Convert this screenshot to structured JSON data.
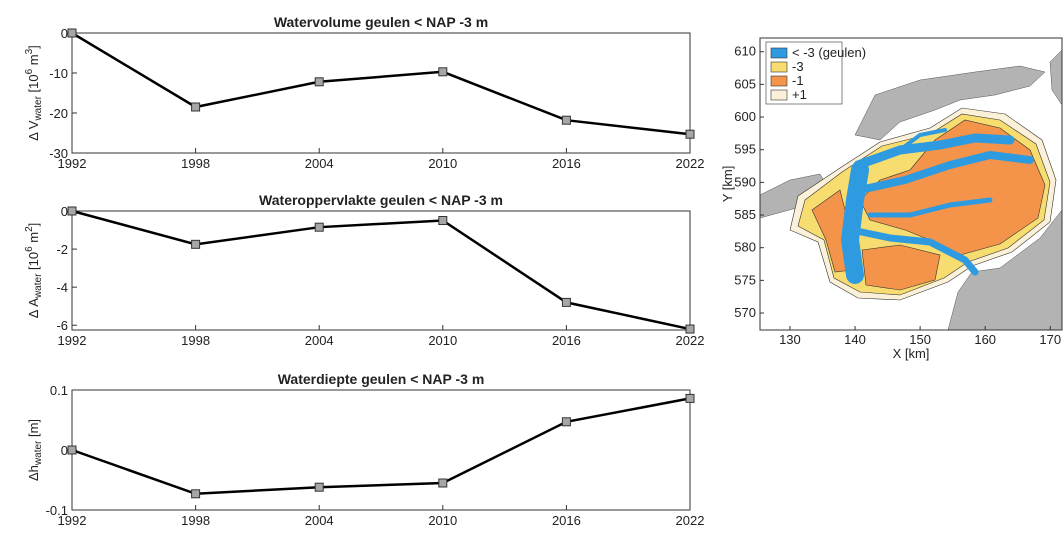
{
  "chart_data": [
    {
      "type": "line",
      "title": "Watervolume geulen < NAP -3 m",
      "ylabel": [
        "Δ V",
        "water",
        " [10",
        "6",
        " m",
        "3",
        "]"
      ],
      "x": [
        1992,
        1998,
        2004,
        2010,
        2016,
        2022
      ],
      "values": [
        0,
        -18.5,
        -12.2,
        -9.7,
        -21.8,
        -25.3
      ],
      "xlim": [
        1992,
        2022
      ],
      "xticks": [
        1992,
        1998,
        2004,
        2010,
        2016,
        2022
      ],
      "ylim": [
        -30,
        0
      ],
      "yticks": [
        -30,
        -20,
        -10,
        0
      ],
      "color": "#000000",
      "marker_color": "#a6a6a6"
    },
    {
      "type": "line",
      "title": "Wateroppervlakte geulen < NAP -3 m",
      "ylabel": [
        "Δ A",
        "water",
        " [10",
        "6",
        " m",
        "2",
        "]"
      ],
      "x": [
        1992,
        1998,
        2004,
        2010,
        2016,
        2022
      ],
      "values": [
        0,
        -1.75,
        -0.85,
        -0.5,
        -4.8,
        -6.2
      ],
      "xlim": [
        1992,
        2022
      ],
      "xticks": [
        1992,
        1998,
        2004,
        2010,
        2016,
        2022
      ],
      "ylim": [
        -6.25,
        0
      ],
      "yticks": [
        -6,
        -4,
        -2,
        0
      ],
      "color": "#000000",
      "marker_color": "#a6a6a6"
    },
    {
      "type": "line",
      "title": "Waterdiepte geulen < NAP -3 m",
      "ylabel": [
        "Δh",
        "water",
        " [m]"
      ],
      "x": [
        1992,
        1998,
        2004,
        2010,
        2016,
        2022
      ],
      "values": [
        0,
        -0.073,
        -0.062,
        -0.055,
        0.047,
        0.086
      ],
      "xlim": [
        1992,
        2022
      ],
      "xticks": [
        1992,
        1998,
        2004,
        2010,
        2016,
        2022
      ],
      "ylim": [
        -0.1,
        0.1
      ],
      "yticks": [
        -0.1,
        0,
        0.1
      ],
      "color": "#000000",
      "marker_color": "#a6a6a6"
    },
    {
      "type": "map",
      "xlabel": "X [km]",
      "ylabel": "Y [km]",
      "xlim": [
        125.4,
        171.8
      ],
      "xticks": [
        130,
        140,
        150,
        160,
        170
      ],
      "ylim": [
        567.4,
        612.1
      ],
      "yticks": [
        570,
        575,
        580,
        585,
        590,
        595,
        600,
        605,
        610
      ],
      "legend": [
        {
          "name": "< -3 (geulen)",
          "color": "#2e9be0"
        },
        {
          "name": "-3",
          "color": "#f7dc6f"
        },
        {
          "name": "-1",
          "color": "#f4934a"
        },
        {
          "name": "+1",
          "color": "#fbf1d8"
        }
      ]
    }
  ]
}
